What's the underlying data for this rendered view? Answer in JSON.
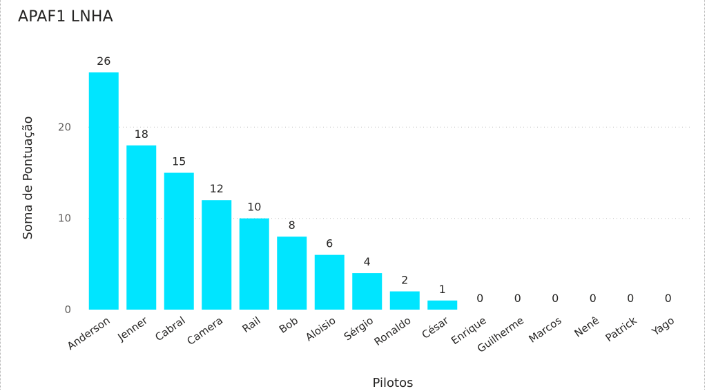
{
  "chart_data": {
    "type": "bar",
    "title": "APAF1 LNHA",
    "xlabel": "Pilotos",
    "ylabel": "Soma de Pontuação",
    "categories": [
      "Anderson",
      "Jenner",
      "Cabral",
      "Camera",
      "Rail",
      "Bob",
      "Aloisio",
      "Sérgio",
      "Ronaldo",
      "César",
      "Enrique",
      "Guilherme",
      "Marcos",
      "Nenê",
      "Patrick",
      "Yago"
    ],
    "values": [
      26,
      18,
      15,
      12,
      10,
      8,
      6,
      4,
      2,
      1,
      0,
      0,
      0,
      0,
      0,
      0
    ],
    "ylim": [
      0,
      26
    ],
    "yticks": [
      0,
      10,
      20
    ],
    "grid": true,
    "data_labels": true,
    "bar_color": "#00E5FF",
    "grid_color": "#c8c8c8"
  }
}
